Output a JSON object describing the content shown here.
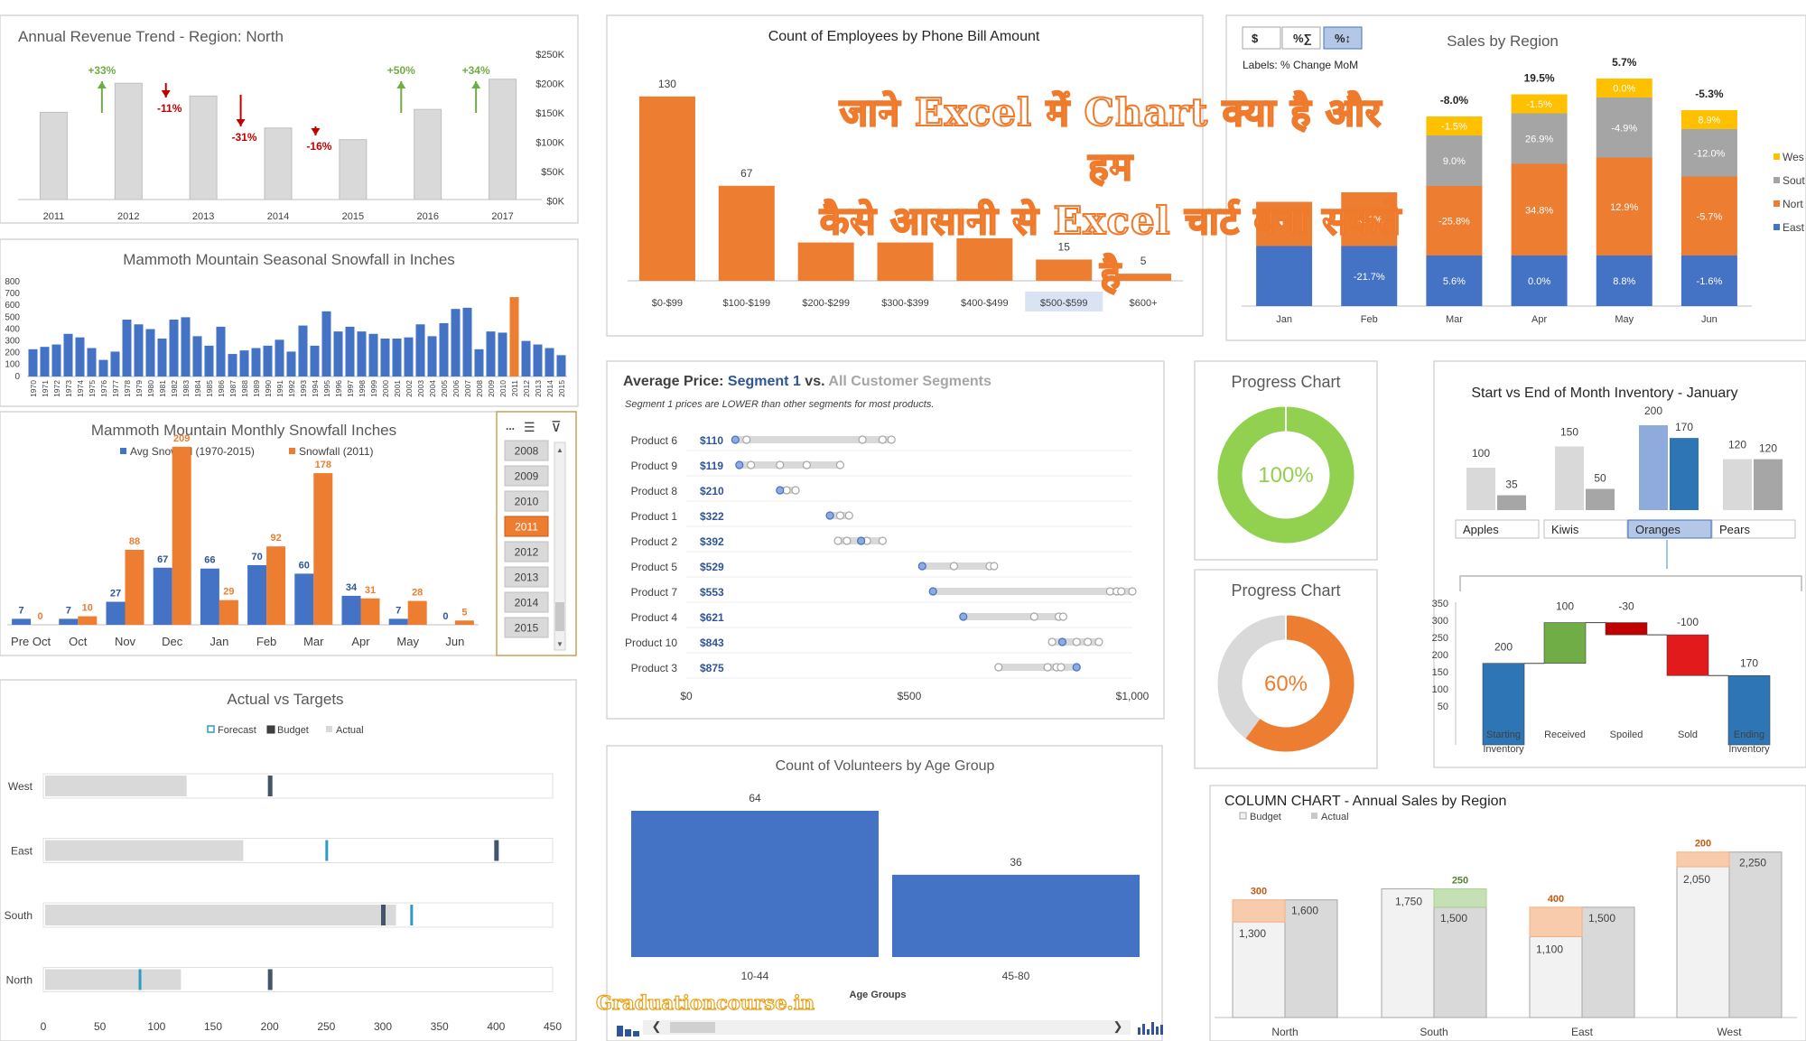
{
  "overlay_text": [
    "जाने Excel में Chart क्या है और हम",
    "कैसे आसानी से Excel चार्ट बना सकते",
    "है"
  ],
  "watermark": "Graduationcourse.in",
  "colors": {
    "orange": "#ED7D31",
    "blue": "#4472C4",
    "grey": "#D9D9D9",
    "yellow": "#FFC000",
    "midgrey": "#A5A5A5",
    "green": "#92D050",
    "red": "#C00000",
    "darkgreen": "#70AD47"
  },
  "chart_data": [
    {
      "id": "revenue",
      "type": "bar",
      "title": "Annual Revenue Trend - Region: North",
      "categories": [
        "2011",
        "2012",
        "2013",
        "2014",
        "2015",
        "2016",
        "2017"
      ],
      "values": [
        150000,
        200000,
        178000,
        123000,
        103000,
        155000,
        207000
      ],
      "change_labels": [
        "",
        "+33%",
        "-11%",
        "-31%",
        "-16%",
        "+50%",
        "+34%"
      ],
      "yticks": [
        "$250K",
        "$200K",
        "$150K",
        "$100K",
        "$50K",
        "$0K"
      ],
      "ylim": [
        0,
        250000
      ]
    },
    {
      "id": "snowfall_years",
      "type": "bar",
      "title": "Mammoth Mountain Seasonal Snowfall in Inches",
      "categories": [
        "1970",
        "1971",
        "1972",
        "1973",
        "1974",
        "1975",
        "1976",
        "1977",
        "1978",
        "1979",
        "1980",
        "1981",
        "1982",
        "1983",
        "1984",
        "1985",
        "1986",
        "1987",
        "1988",
        "1989",
        "1990",
        "1991",
        "1992",
        "1993",
        "1994",
        "1995",
        "1996",
        "1997",
        "1998",
        "1999",
        "2000",
        "2001",
        "2002",
        "2003",
        "2004",
        "2005",
        "2006",
        "2007",
        "2008",
        "2009",
        "2010",
        "2011",
        "2012",
        "2013",
        "2014",
        "2015"
      ],
      "values": [
        230,
        250,
        270,
        360,
        330,
        240,
        140,
        210,
        480,
        440,
        400,
        320,
        480,
        500,
        340,
        260,
        420,
        190,
        220,
        240,
        260,
        310,
        210,
        430,
        260,
        550,
        380,
        420,
        380,
        360,
        320,
        320,
        330,
        440,
        340,
        450,
        570,
        580,
        230,
        380,
        370,
        670,
        300,
        270,
        240,
        180
      ],
      "highlight": "2011",
      "yticks": [
        "800",
        "700",
        "600",
        "500",
        "400",
        "300",
        "200",
        "100",
        "0"
      ],
      "ylim": [
        0,
        800
      ]
    },
    {
      "id": "snowfall_months",
      "type": "bar",
      "title": "Mammoth Mountain Monthly Snowfall Inches",
      "categories": [
        "Pre Oct",
        "Oct",
        "Nov",
        "Dec",
        "Jan",
        "Feb",
        "Mar",
        "Apr",
        "May",
        "Jun"
      ],
      "series": [
        {
          "name": "Avg Snowfall (1970-2015)",
          "values": [
            7,
            7,
            27,
            67,
            66,
            70,
            60,
            34,
            7,
            0
          ]
        },
        {
          "name": "Snowfall (2011)",
          "values": [
            0,
            10,
            88,
            209,
            29,
            92,
            178,
            31,
            28,
            5
          ]
        }
      ],
      "ylim": [
        0,
        230
      ]
    },
    {
      "id": "employees",
      "type": "bar",
      "title": "Count of Employees by Phone Bill Amount",
      "categories": [
        "$0-$99",
        "$100-$199",
        "$200-$299",
        "$300-$399",
        "$400-$499",
        "$500-$599",
        "$600+"
      ],
      "values": [
        130,
        67,
        27,
        27,
        30,
        15,
        5
      ],
      "visible_labels": [
        "130",
        "67",
        "",
        "",
        "",
        "15",
        "5"
      ],
      "ylim": [
        0,
        135
      ]
    },
    {
      "id": "sales_region",
      "type": "bar",
      "title": "Sales by Region",
      "subtitle": "Labels: % Change MoM",
      "buttons": [
        "$",
        "%∑",
        "%↕"
      ],
      "categories": [
        "Jan",
        "Feb",
        "Mar",
        "Apr",
        "May",
        "Jun"
      ],
      "series": [
        {
          "name": "West",
          "values": [
            0,
            0,
            12,
            12,
            12,
            12
          ],
          "labels": [
            "",
            "",
            "-1.5%",
            "-1.5%",
            "0.0%",
            "8.9%"
          ]
        },
        {
          "name": "South",
          "values": [
            0,
            0,
            32,
            32,
            38,
            30
          ],
          "labels": [
            "",
            "",
            "9.0%",
            "26.9%",
            "-4.9%",
            "-12.0%"
          ]
        },
        {
          "name": "North",
          "values": [
            28,
            34,
            44,
            58,
            62,
            50
          ],
          "labels": [
            "",
            "-6.1%",
            "-25.8%",
            "34.8%",
            "12.9%",
            "-5.7%"
          ]
        },
        {
          "name": "East",
          "values": [
            38,
            38,
            32,
            32,
            32,
            32
          ],
          "labels": [
            "",
            "-21.7%",
            "5.6%",
            "0.0%",
            "8.8%",
            "-1.6%"
          ]
        }
      ],
      "totals": [
        "",
        "",
        "-8.0%",
        "19.5%",
        "5.7%",
        "-5.3%"
      ],
      "legend": [
        "Wes",
        "Sout",
        "Nort",
        "East"
      ],
      "ylim": [
        0,
        160
      ]
    },
    {
      "id": "avg_price",
      "type": "scatter",
      "title_parts": [
        "Average Price: ",
        "Segment 1",
        " vs. ",
        "All Customer Segments"
      ],
      "subtitle": "Segment 1 prices are LOWER than other segments for most products.",
      "rows": [
        {
          "product": "Product 6",
          "price": "$110",
          "seg1": 110,
          "others": [
            135,
            395,
            440,
            460
          ]
        },
        {
          "product": "Product 9",
          "price": "$119",
          "seg1": 119,
          "others": [
            145,
            210,
            270,
            345
          ]
        },
        {
          "product": "Product 8",
          "price": "$210",
          "seg1": 210,
          "others": [
            225,
            245
          ]
        },
        {
          "product": "Product 1",
          "price": "$322",
          "seg1": 322,
          "others": [
            345,
            365
          ]
        },
        {
          "product": "Product 2",
          "price": "$392",
          "seg1": 392,
          "others": [
            340,
            360,
            405,
            440
          ]
        },
        {
          "product": "Product 5",
          "price": "$529",
          "seg1": 529,
          "others": [
            600,
            680,
            690
          ]
        },
        {
          "product": "Product 7",
          "price": "$553",
          "seg1": 553,
          "others": [
            950,
            965,
            975,
            1000
          ]
        },
        {
          "product": "Product 4",
          "price": "$621",
          "seg1": 621,
          "others": [
            780,
            835,
            845
          ]
        },
        {
          "product": "Product 10",
          "price": "$843",
          "seg1": 843,
          "others": [
            820,
            875,
            900,
            925
          ]
        },
        {
          "product": "Product 3",
          "price": "$875",
          "seg1": 875,
          "others": [
            700,
            810,
            830,
            840
          ]
        }
      ],
      "xticks": [
        "$0",
        "$500",
        "$1,000"
      ],
      "xlim": [
        0,
        1000
      ]
    },
    {
      "id": "progress1",
      "type": "pie",
      "title": "Progress Chart",
      "value": 100,
      "label": "100%",
      "color": "#92D050"
    },
    {
      "id": "progress2",
      "type": "pie",
      "title": "Progress Chart",
      "value": 60,
      "label": "60%",
      "color": "#ED7D31"
    },
    {
      "id": "inventory",
      "type": "bar",
      "title": "Start vs End of Month Inventory - January",
      "categories": [
        "Apples",
        "Kiwis",
        "Oranges",
        "Pears"
      ],
      "start": [
        100,
        150,
        200,
        120
      ],
      "end": [
        35,
        50,
        170,
        120
      ],
      "selected": "Oranges",
      "waterfall": {
        "steps": [
          "Starting Inventory",
          "Received",
          "Spoiled",
          "Sold",
          "Ending Inventory"
        ],
        "values": [
          200,
          100,
          -30,
          -100,
          170
        ],
        "labels": [
          "200",
          "100",
          "-30",
          "-100",
          "170"
        ],
        "yticks": [
          "350",
          "300",
          "250",
          "200",
          "150",
          "100",
          "50"
        ],
        "ylim": [
          0,
          350
        ]
      }
    },
    {
      "id": "actual_targets",
      "type": "bar",
      "title": "Actual vs Targets",
      "legend": [
        "Forecast",
        "Budget",
        "Actual"
      ],
      "categories": [
        "West",
        "East",
        "South",
        "North"
      ],
      "actual": [
        125,
        175,
        310,
        120
      ],
      "forecast": [
        200,
        250,
        325,
        85
      ],
      "budget": [
        200,
        400,
        300,
        200
      ],
      "xticks": [
        "0",
        "50",
        "100",
        "150",
        "200",
        "250",
        "300",
        "350",
        "400",
        "450"
      ],
      "xlim": [
        0,
        450
      ]
    },
    {
      "id": "volunteers",
      "type": "bar",
      "title": "Count of Volunteers by Age Group",
      "xlabel": "Age Groups",
      "categories": [
        "10-44",
        "45-80"
      ],
      "values": [
        64,
        36
      ],
      "ylim": [
        0,
        70
      ]
    },
    {
      "id": "column_sales",
      "type": "bar",
      "title": "COLUMN CHART - Annual Sales by Region",
      "legend": [
        "Budget",
        "Actual"
      ],
      "categories": [
        "North",
        "South",
        "East",
        "West"
      ],
      "budget": [
        1300,
        1750,
        1100,
        2050
      ],
      "actual": [
        1600,
        1500,
        1500,
        2250
      ],
      "variance_labels": [
        "300",
        "250",
        "400",
        "200"
      ],
      "ylim": [
        0,
        2600
      ]
    }
  ],
  "slicer": {
    "years": [
      "2008",
      "2009",
      "2010",
      "2011",
      "2012",
      "2013",
      "2014",
      "2015"
    ],
    "selected": "2011",
    "header_dots": "..."
  }
}
